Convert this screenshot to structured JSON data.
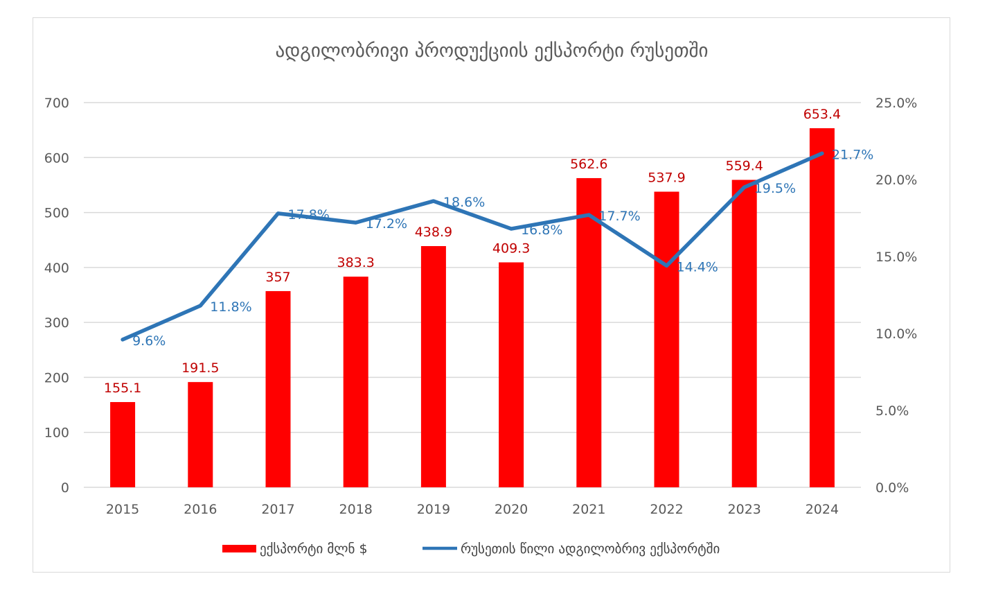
{
  "chart_data": {
    "type": "bar+line",
    "title": "ადგილობრივი პროდუქციის ექსპორტი რუსეთში",
    "categories": [
      "2015",
      "2016",
      "2017",
      "2018",
      "2019",
      "2020",
      "2021",
      "2022",
      "2023",
      "2024"
    ],
    "series": [
      {
        "name": "ექსპორტი მლნ $",
        "type": "bar",
        "axis": "left",
        "color": "#ff0000",
        "values": [
          155.1,
          191.5,
          357,
          383.3,
          438.9,
          409.3,
          562.6,
          537.9,
          559.4,
          653.4
        ],
        "labels": [
          "155.1",
          "191.5",
          "357",
          "383.3",
          "438.9",
          "409.3",
          "562.6",
          "537.9",
          "559.4",
          "653.4"
        ]
      },
      {
        "name": "რუსეთის წილი ადგილობრივ ექსპორტში",
        "type": "line",
        "axis": "right",
        "color": "#2e75b6",
        "values": [
          9.6,
          11.8,
          17.8,
          17.2,
          18.6,
          16.8,
          17.7,
          14.4,
          19.5,
          21.7
        ],
        "labels": [
          "9.6%",
          "11.8%",
          "17.8%",
          "17.2%",
          "18.6%",
          "16.8%",
          "17.7%",
          "14.4%",
          "19.5%",
          "21.7%"
        ]
      }
    ],
    "y_left": {
      "min": 0,
      "max": 700,
      "ticks": [
        "0",
        "100",
        "200",
        "300",
        "400",
        "500",
        "600",
        "700"
      ]
    },
    "y_right": {
      "min": 0,
      "max": 25,
      "ticks": [
        "0.0%",
        "5.0%",
        "10.0%",
        "15.0%",
        "20.0%",
        "25.0%"
      ]
    },
    "grid": true,
    "legend_position": "bottom",
    "label_color": "#c00000",
    "line_label_color": "#2e75b6"
  }
}
